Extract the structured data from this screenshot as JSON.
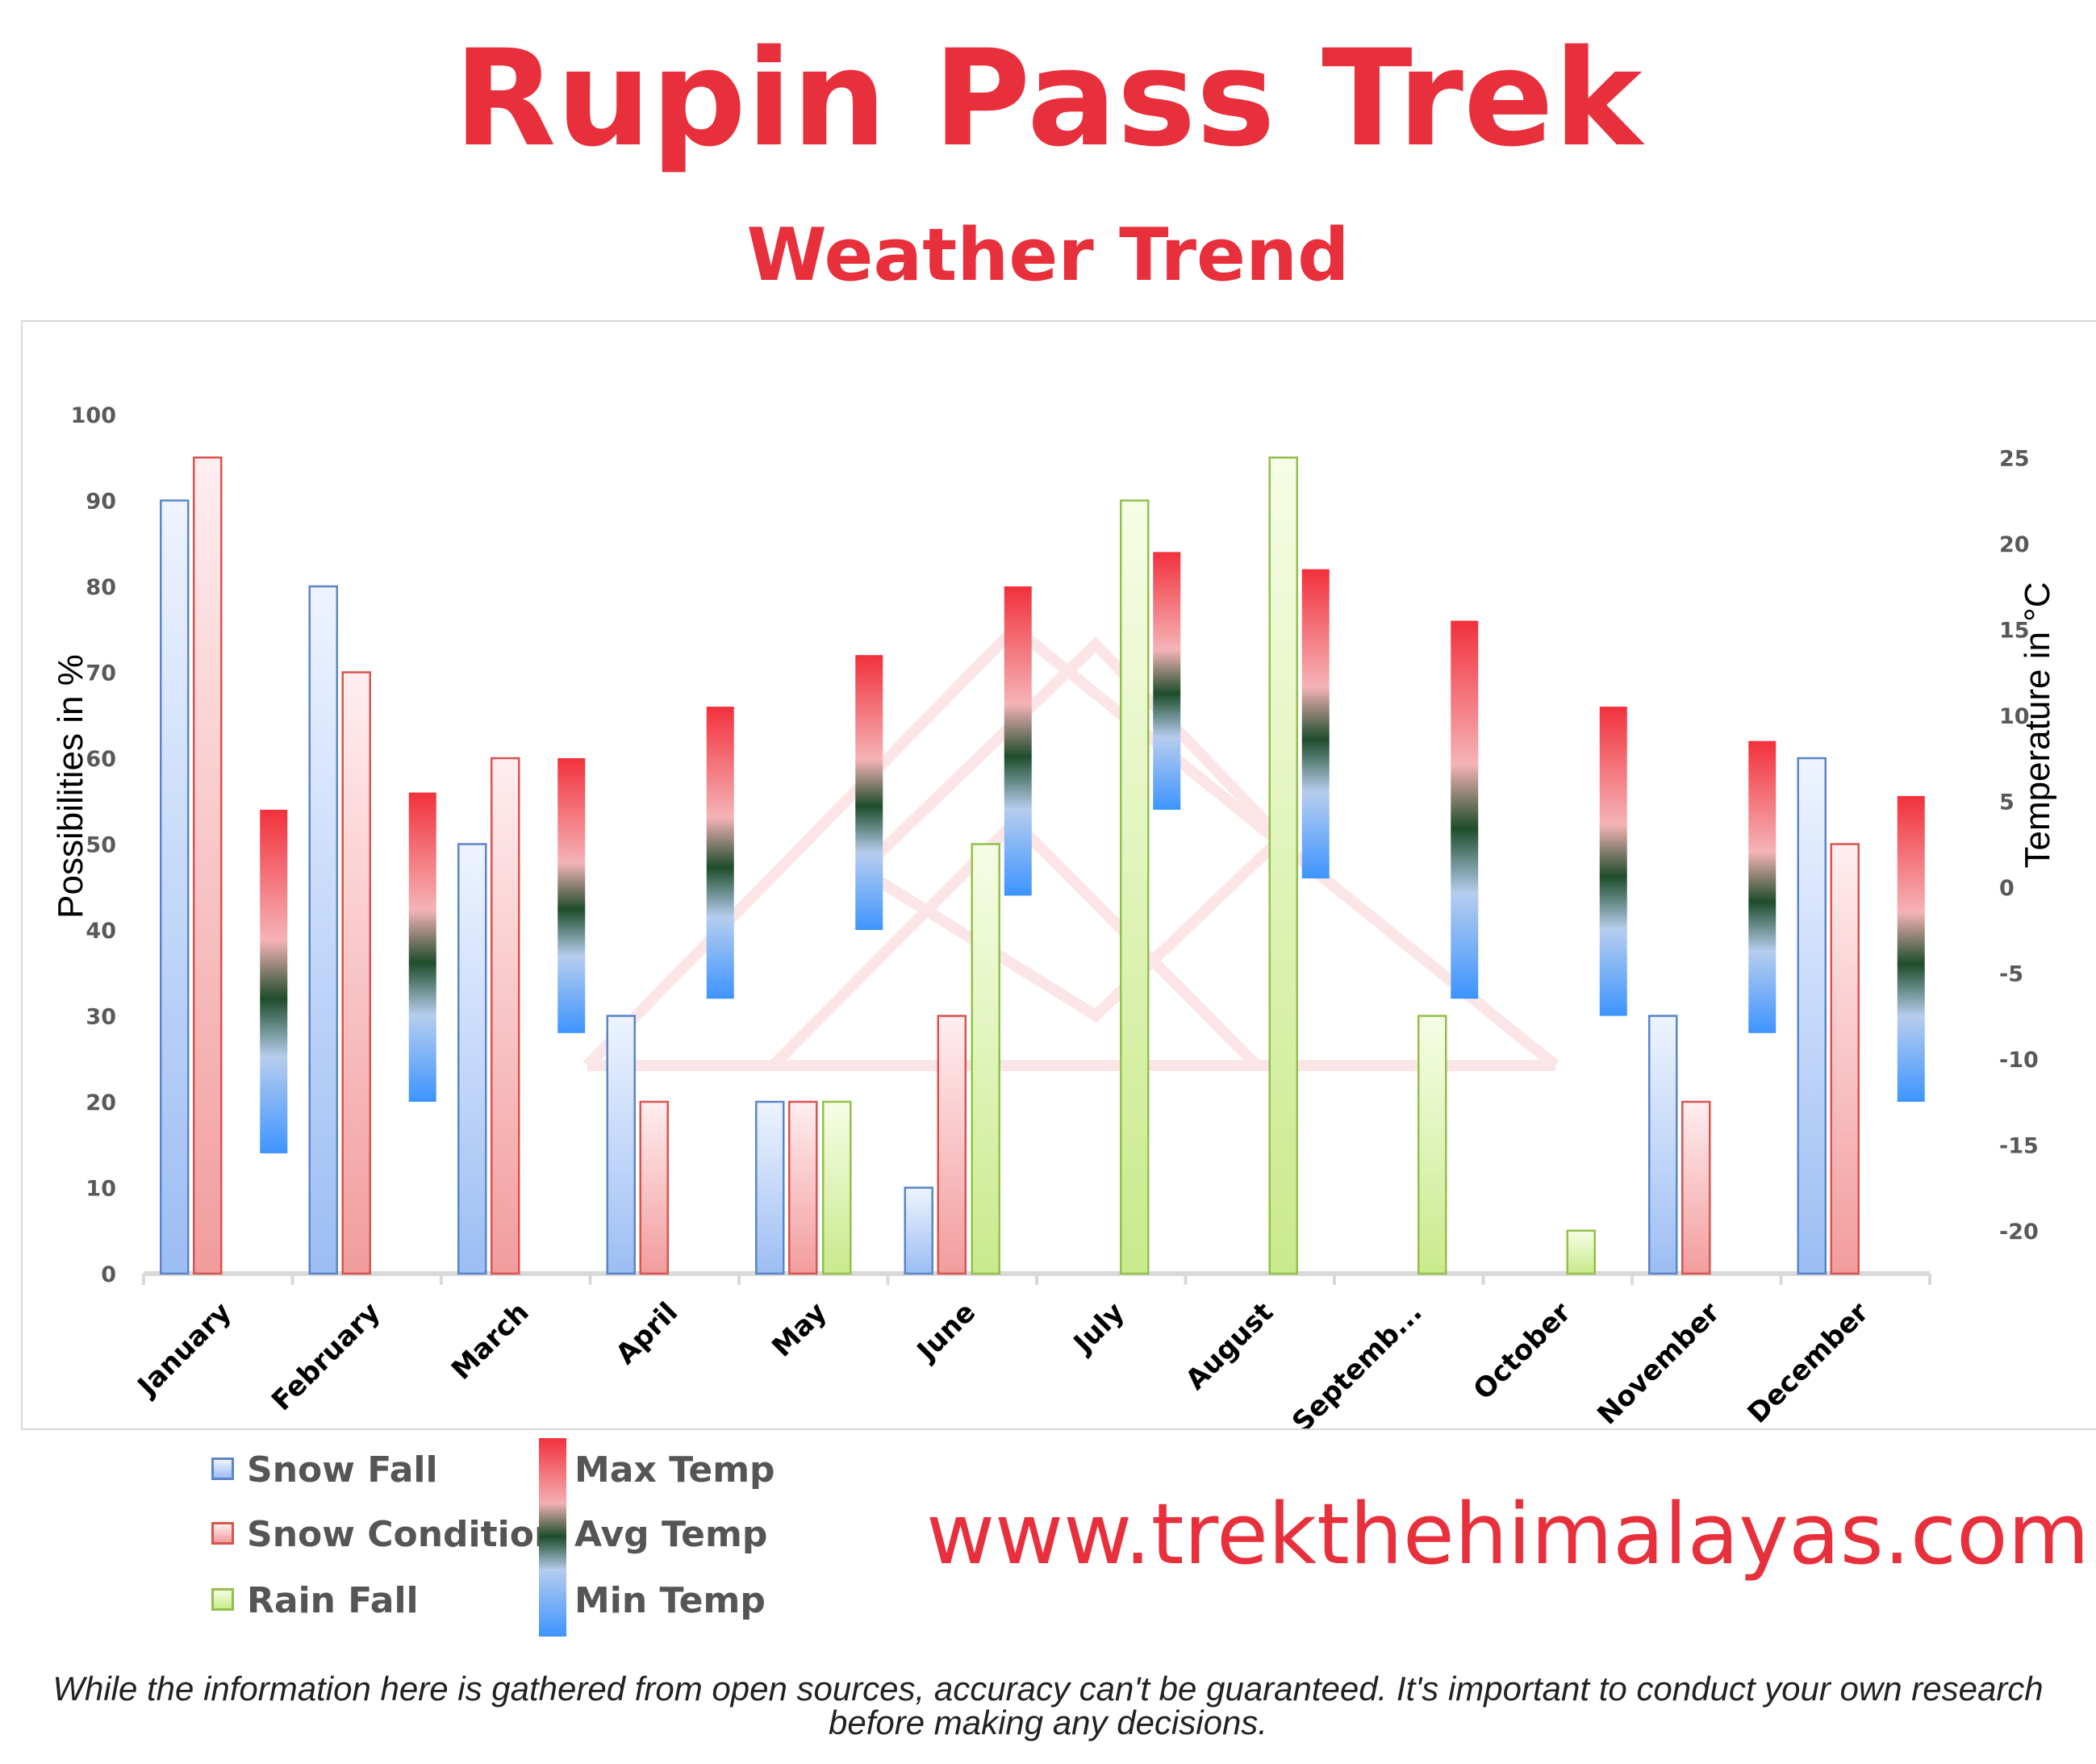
{
  "header": {
    "title": "Rupin Pass Trek",
    "subtitle": "Weather Trend"
  },
  "chart_data": {
    "type": "bar",
    "categories": [
      "January",
      "February",
      "March",
      "April",
      "May",
      "June",
      "July",
      "August",
      "Septemb...",
      "October",
      "November",
      "December"
    ],
    "y_left": {
      "label": "Possibilities in %",
      "range": [
        0,
        100
      ],
      "ticks": [
        0,
        10,
        20,
        30,
        40,
        50,
        60,
        70,
        80,
        90,
        100
      ]
    },
    "y_right": {
      "label": "Temperature in °C",
      "range": [
        -22.5,
        27.5
      ],
      "ticks": [
        -20,
        -15,
        -10,
        -5,
        0,
        5,
        10,
        15,
        20,
        25
      ]
    },
    "series": [
      {
        "name": "Snow Fall",
        "axis": "left",
        "color": "#5b85c9",
        "values": [
          90,
          80,
          50,
          30,
          20,
          10,
          0,
          0,
          0,
          0,
          30,
          60
        ]
      },
      {
        "name": "Snow Condition",
        "axis": "left",
        "color": "#d9534f",
        "values": [
          95,
          70,
          60,
          20,
          20,
          30,
          0,
          0,
          0,
          0,
          20,
          50
        ]
      },
      {
        "name": "Rain Fall",
        "axis": "left",
        "color": "#92c04a",
        "values": [
          0,
          0,
          0,
          0,
          20,
          50,
          90,
          95,
          30,
          5,
          0,
          0
        ]
      }
    ],
    "temperature": {
      "axis": "right",
      "max": [
        4.5,
        5.5,
        7.5,
        10.5,
        13.5,
        17.5,
        19.5,
        18.5,
        15.5,
        10.5,
        8.5,
        5.3
      ],
      "avg": [
        -5,
        -3.5,
        -1,
        2,
        6,
        8.5,
        12,
        9,
        3,
        -1,
        -0.5,
        -3.5
      ],
      "min": [
        -15.5,
        -12.5,
        -8.5,
        -6.5,
        -2.5,
        -0.5,
        4.5,
        0.5,
        -6.5,
        -7.5,
        -8.5,
        -12.5
      ]
    },
    "grid": false,
    "legend_position": "bottom-left"
  },
  "legend": {
    "items": [
      {
        "label": "Snow Fall",
        "color": "#5b85c9"
      },
      {
        "label": "Snow Condition",
        "color": "#d9534f"
      },
      {
        "label": "Rain Fall",
        "color": "#92c04a"
      },
      {
        "label": "Max Temp",
        "color": "#f2313c"
      },
      {
        "label": "Avg Temp",
        "color": "#1e4d2b"
      },
      {
        "label": "Min Temp",
        "color": "#3d94ff"
      }
    ]
  },
  "website": "www.trekthehimalayas.com",
  "disclaimer": "While the information here is gathered from open sources, accuracy can't be guaranteed. It's important to conduct your own research before making any decisions."
}
